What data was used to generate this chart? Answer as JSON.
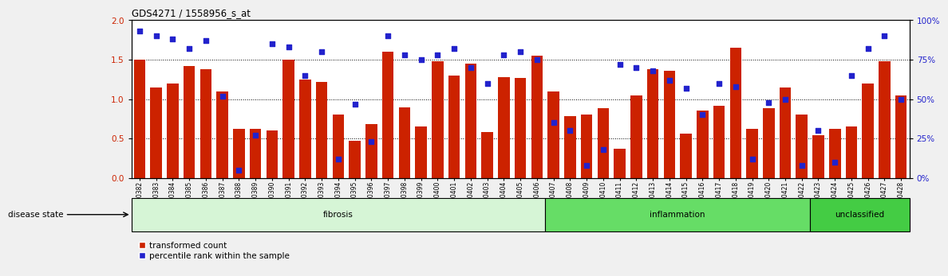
{
  "title": "GDS4271 / 1558956_s_at",
  "samples": [
    "GSM380382",
    "GSM380383",
    "GSM380384",
    "GSM380385",
    "GSM380386",
    "GSM380387",
    "GSM380388",
    "GSM380389",
    "GSM380390",
    "GSM380391",
    "GSM380392",
    "GSM380393",
    "GSM380394",
    "GSM380395",
    "GSM380396",
    "GSM380397",
    "GSM380398",
    "GSM380399",
    "GSM380400",
    "GSM380401",
    "GSM380402",
    "GSM380403",
    "GSM380404",
    "GSM380405",
    "GSM380406",
    "GSM380407",
    "GSM380408",
    "GSM380409",
    "GSM380410",
    "GSM380411",
    "GSM380412",
    "GSM380413",
    "GSM380414",
    "GSM380415",
    "GSM380416",
    "GSM380417",
    "GSM380418",
    "GSM380419",
    "GSM380420",
    "GSM380421",
    "GSM380422",
    "GSM380423",
    "GSM380424",
    "GSM380425",
    "GSM380426",
    "GSM380427",
    "GSM380428"
  ],
  "bar_values": [
    1.5,
    1.15,
    1.2,
    1.42,
    1.38,
    1.1,
    0.62,
    0.62,
    0.6,
    1.5,
    1.25,
    1.22,
    0.8,
    0.47,
    0.68,
    1.6,
    0.9,
    0.65,
    1.48,
    1.3,
    1.45,
    0.58,
    1.28,
    1.27,
    1.55,
    1.1,
    0.78,
    0.8,
    0.88,
    0.37,
    1.05,
    1.38,
    1.36,
    0.56,
    0.85,
    0.92,
    1.65,
    0.62,
    0.88,
    1.15,
    0.8,
    0.54,
    0.62,
    0.65,
    1.2,
    1.48,
    1.05
  ],
  "percentile_values": [
    93,
    90,
    88,
    82,
    87,
    52,
    5,
    27,
    85,
    83,
    65,
    80,
    12,
    47,
    23,
    90,
    78,
    75,
    78,
    82,
    70,
    60,
    78,
    80,
    75,
    35,
    30,
    8,
    18,
    72,
    70,
    68,
    62,
    57,
    40,
    60,
    58,
    12,
    48,
    50,
    8,
    30,
    10,
    65,
    82,
    90,
    50
  ],
  "groups": [
    {
      "label": "fibrosis",
      "start": 0,
      "end": 25,
      "color": "#d6f5d6"
    },
    {
      "label": "inflammation",
      "start": 25,
      "end": 41,
      "color": "#66dd66"
    },
    {
      "label": "unclassified",
      "start": 41,
      "end": 47,
      "color": "#44cc44"
    }
  ],
  "bar_color": "#cc2200",
  "dot_color": "#2222cc",
  "ylim_left": [
    0,
    2.0
  ],
  "ylim_right": [
    0,
    100
  ],
  "yticks_left": [
    0,
    0.5,
    1.0,
    1.5,
    2.0
  ],
  "yticks_right": [
    0,
    25,
    50,
    75,
    100
  ],
  "hlines": [
    0.5,
    1.0,
    1.5
  ],
  "fig_bg": "#f0f0f0",
  "plot_bg": "#ffffff",
  "xlabel_fontsize": 5.5,
  "ylabel_fontsize": 8
}
